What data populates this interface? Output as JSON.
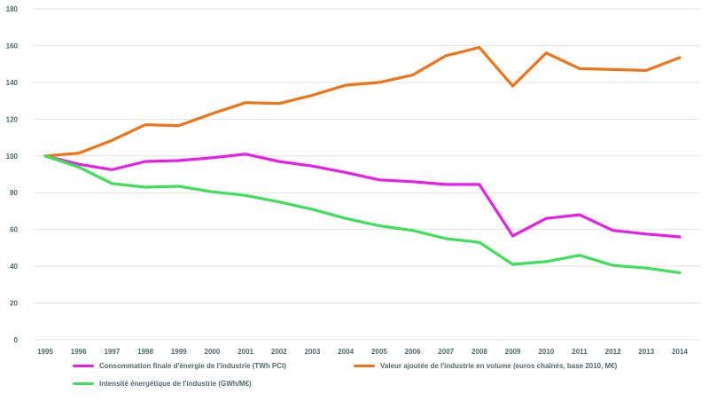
{
  "chart_data": {
    "type": "line",
    "title": "",
    "xlabel": "",
    "ylabel": "",
    "ylim": [
      0,
      180
    ],
    "yticks": [
      0,
      20,
      40,
      60,
      80,
      100,
      120,
      140,
      160,
      180
    ],
    "grid": true,
    "legend_position": "bottom",
    "x": [
      "1995",
      "1996",
      "1997",
      "1998",
      "1999",
      "2000",
      "2001",
      "2002",
      "2003",
      "2004",
      "2005",
      "2006",
      "2007",
      "2008",
      "2009",
      "2010",
      "2011",
      "2012",
      "2013",
      "2014"
    ],
    "series": [
      {
        "name": "Consommation finale d'énergie de l'industrie (TWh PCI)",
        "color": "#e81ee8",
        "values": [
          100,
          95.5,
          92.5,
          97,
          97.5,
          99,
          101,
          97,
          94.5,
          91,
          87,
          86,
          84.5,
          84.5,
          56.5,
          66,
          68,
          59.5,
          57.5,
          56
        ]
      },
      {
        "name": "Valeur ajoutée de l'industrie en volume (euros chaînés, base 2010, M€)",
        "color": "#f27316",
        "values": [
          100,
          101.5,
          108.5,
          117,
          116.5,
          123,
          129,
          128.5,
          133,
          138.5,
          140,
          144,
          154.5,
          159,
          138,
          156,
          147.5,
          147,
          146.5,
          153.5
        ]
      },
      {
        "name": "Intensité énergétique de l'industrie (GWh/M€)",
        "color": "#3ee05a",
        "values": [
          100,
          94,
          85,
          83,
          83.5,
          80.5,
          78.5,
          75,
          71,
          66,
          62,
          59.5,
          55,
          53,
          41,
          42.5,
          46,
          40.5,
          39,
          36.5
        ]
      }
    ]
  }
}
